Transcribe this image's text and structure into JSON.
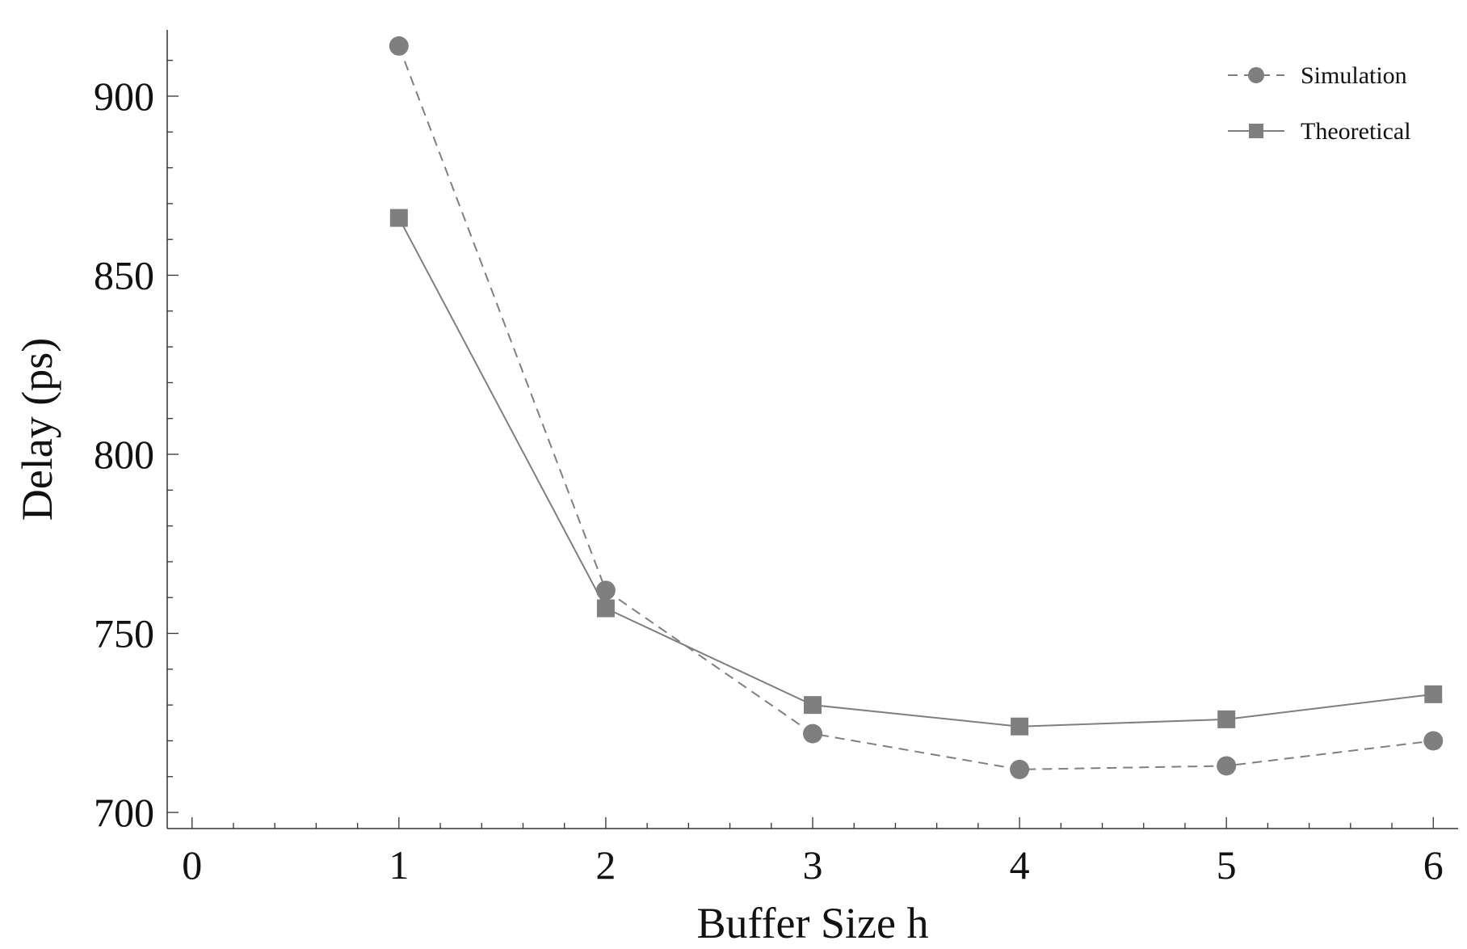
{
  "chart_data": {
    "type": "line",
    "title": "",
    "xlabel": "Buffer Size h",
    "ylabel": "Delay (ps)",
    "xlim": [
      -0.12,
      6.12
    ],
    "ylim": [
      695.5,
      918.5
    ],
    "x_ticks": [
      0,
      1,
      2,
      3,
      4,
      5,
      6
    ],
    "x_tick_labels": [
      "0",
      "1",
      "2",
      "3",
      "4",
      "5",
      "6"
    ],
    "x_minor_step": 0.2,
    "y_ticks": [
      700,
      750,
      800,
      850,
      900
    ],
    "y_tick_labels": [
      "700",
      "750",
      "800",
      "850",
      "900"
    ],
    "y_minor_step": 10,
    "grid": false,
    "legend_position": "top-right",
    "series_color": "#7f7f7f",
    "series": [
      {
        "name": "Simulation",
        "marker": "circle",
        "line_style": "dashed",
        "x": [
          1,
          2,
          3,
          4,
          5,
          6
        ],
        "y": [
          914,
          762,
          722,
          712,
          713,
          720
        ]
      },
      {
        "name": "Theoretical",
        "marker": "square",
        "line_style": "solid",
        "x": [
          1,
          2,
          3,
          4,
          5,
          6
        ],
        "y": [
          866,
          757,
          730,
          724,
          726,
          733
        ]
      }
    ]
  }
}
